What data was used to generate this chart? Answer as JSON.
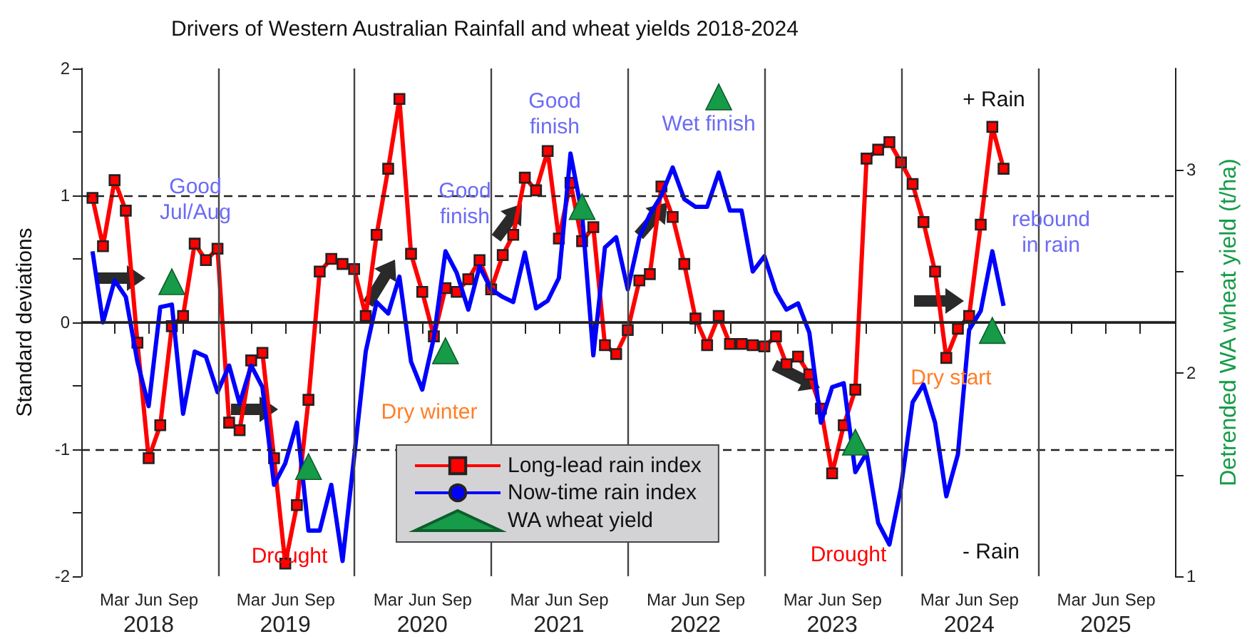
{
  "chart_data": {
    "type": "line",
    "title": "Drivers of Western Australian Rainfall and wheat yields 2018-2024",
    "ylabel": "Standard deviations",
    "y2label": "Detrended WA wheat yield (t/ha)",
    "x": [
      "2018-01-31",
      "2018-02-28",
      "2018-03-31",
      "2018-04-30",
      "2018-05-31",
      "2018-06-30",
      "2018-07-31",
      "2018-08-31",
      "2018-09-30",
      "2018-10-31",
      "2018-11-30",
      "2018-12-31",
      "2019-01-31",
      "2019-02-28",
      "2019-03-31",
      "2019-04-30",
      "2019-05-31",
      "2019-06-30",
      "2019-07-31",
      "2019-08-31",
      "2019-09-30",
      "2019-10-31",
      "2019-11-30",
      "2019-12-31",
      "2020-01-31",
      "2020-02-29",
      "2020-03-31",
      "2020-04-30",
      "2020-05-31",
      "2020-06-30",
      "2020-07-31",
      "2020-08-31",
      "2020-09-30",
      "2020-10-31",
      "2020-11-30",
      "2020-12-31",
      "2021-01-31",
      "2021-02-28",
      "2021-03-31",
      "2021-04-30",
      "2021-05-31",
      "2021-06-30",
      "2021-07-31",
      "2021-08-31",
      "2021-09-30",
      "2021-10-31",
      "2021-11-30",
      "2021-12-31",
      "2022-01-31",
      "2022-02-28",
      "2022-03-31",
      "2022-04-30",
      "2022-05-31",
      "2022-06-30",
      "2022-07-31",
      "2022-08-31",
      "2022-09-30",
      "2022-10-31",
      "2022-11-30",
      "2022-12-31",
      "2023-01-31",
      "2023-02-28",
      "2023-03-31",
      "2023-04-30",
      "2023-05-31",
      "2023-06-30",
      "2023-07-31",
      "2023-08-31",
      "2023-09-30",
      "2023-10-31",
      "2023-11-30",
      "2023-12-31",
      "2024-01-31",
      "2024-02-29",
      "2024-03-31",
      "2024-04-30",
      "2024-05-31",
      "2024-06-30",
      "2024-07-31",
      "2024-08-31",
      "2024-09-30"
    ],
    "series": [
      {
        "name": "Long-lead rain index",
        "color": "#ff0000",
        "marker": "square",
        "values": [
          0.98,
          0.6,
          1.12,
          0.88,
          -0.16,
          -1.07,
          -0.81,
          -0.03,
          0.05,
          0.62,
          0.49,
          0.58,
          -0.79,
          -0.85,
          -0.3,
          -0.24,
          -1.07,
          -1.9,
          -1.44,
          -0.61,
          0.4,
          0.5,
          0.46,
          0.42,
          0.05,
          0.69,
          1.21,
          1.76,
          0.54,
          0.24,
          -0.11,
          0.27,
          0.24,
          0.34,
          0.49,
          0.26,
          0.53,
          0.69,
          1.14,
          1.04,
          1.35,
          0.66,
          1.1,
          0.64,
          0.75,
          -0.18,
          -0.25,
          -0.06,
          0.33,
          0.38,
          1.07,
          0.83,
          0.46,
          0.03,
          -0.18,
          0.05,
          -0.17,
          -0.17,
          -0.18,
          -0.19,
          -0.11,
          -0.33,
          -0.27,
          -0.41,
          -0.68,
          -1.19,
          -0.81,
          -0.53,
          1.29,
          1.36,
          1.42,
          1.26,
          1.09,
          0.79,
          0.4,
          -0.28,
          -0.05,
          0.05,
          0.77,
          1.54,
          1.21
        ]
      },
      {
        "name": "Now-time rain index",
        "color": "#0000ff",
        "marker": "none",
        "values": [
          0.56,
          0.0,
          0.33,
          0.2,
          -0.31,
          -0.66,
          0.12,
          0.14,
          -0.72,
          -0.23,
          -0.27,
          -0.55,
          -0.34,
          -0.64,
          -0.34,
          -0.51,
          -1.28,
          -1.11,
          -0.79,
          -1.64,
          -1.64,
          -1.28,
          -1.88,
          -1.06,
          -0.23,
          0.16,
          0.07,
          0.36,
          -0.31,
          -0.53,
          -0.12,
          0.56,
          0.39,
          0.1,
          0.44,
          0.26,
          0.2,
          0.16,
          0.55,
          0.11,
          0.17,
          0.35,
          1.33,
          0.85,
          -0.26,
          0.59,
          0.67,
          0.26,
          0.67,
          0.85,
          1.0,
          1.22,
          0.97,
          0.91,
          0.91,
          1.18,
          0.88,
          0.88,
          0.4,
          0.52,
          0.24,
          0.1,
          0.15,
          -0.08,
          -0.79,
          -0.51,
          -0.48,
          -1.18,
          -1.03,
          -1.58,
          -1.75,
          -1.3,
          -0.63,
          -0.49,
          -0.79,
          -1.37,
          -1.04,
          -0.06,
          0.09,
          0.56,
          0.13
        ]
      },
      {
        "name": "WA wheat yield",
        "type": "scatter",
        "color": "#169b48",
        "marker": "triangle",
        "axis": "y2",
        "x": [
          "2018-08-31",
          "2019-08-31",
          "2020-08-31",
          "2021-08-31",
          "2022-08-31",
          "2023-08-31",
          "2024-08-31"
        ],
        "values": [
          2.45,
          1.54,
          2.11,
          2.82,
          3.36,
          1.66,
          2.21
        ]
      }
    ],
    "xlim": [
      "2018-01-01",
      "2026-01-01"
    ],
    "xticks": [
      {
        "value": "2018-01-01",
        "label": null
      },
      {
        "value": "2018-03-31",
        "label": "Mar"
      },
      {
        "value": "2018-06-30",
        "label": "Jun\n2018"
      },
      {
        "value": "2018-09-30",
        "label": "Sep"
      },
      {
        "value": "2019-01-01",
        "label": null
      },
      {
        "value": "2019-03-31",
        "label": "Mar"
      },
      {
        "value": "2019-06-30",
        "label": "Jun\n2019"
      },
      {
        "value": "2019-09-30",
        "label": "Sep"
      },
      {
        "value": "2020-01-01",
        "label": null
      },
      {
        "value": "2020-03-31",
        "label": "Mar"
      },
      {
        "value": "2020-06-30",
        "label": "Jun\n2020"
      },
      {
        "value": "2020-09-30",
        "label": "Sep"
      },
      {
        "value": "2021-01-01",
        "label": null
      },
      {
        "value": "2021-03-31",
        "label": "Mar"
      },
      {
        "value": "2021-06-30",
        "label": "Jun\n2021"
      },
      {
        "value": "2021-09-30",
        "label": "Sep"
      },
      {
        "value": "2022-01-01",
        "label": null
      },
      {
        "value": "2022-03-31",
        "label": "Mar"
      },
      {
        "value": "2022-06-30",
        "label": "Jun\n2022"
      },
      {
        "value": "2022-09-30",
        "label": "Sep"
      },
      {
        "value": "2023-01-01",
        "label": null
      },
      {
        "value": "2023-03-31",
        "label": "Mar"
      },
      {
        "value": "2023-06-30",
        "label": "Jun\n2023"
      },
      {
        "value": "2023-09-30",
        "label": "Sep"
      },
      {
        "value": "2024-01-01",
        "label": null
      },
      {
        "value": "2024-03-31",
        "label": "Mar"
      },
      {
        "value": "2024-06-30",
        "label": "Jun\n2024"
      },
      {
        "value": "2024-09-30",
        "label": "Sep"
      },
      {
        "value": "2025-01-01",
        "label": null
      },
      {
        "value": "2025-03-31",
        "label": "Mar"
      },
      {
        "value": "2025-06-30",
        "label": "Jun\n2025"
      },
      {
        "value": "2025-09-30",
        "label": "Sep"
      },
      {
        "value": "2026-01-01",
        "label": null
      }
    ],
    "ylim": [
      -2,
      2
    ],
    "yticks": [
      -2,
      {
        "value": -1.5,
        "label": null
      },
      -1,
      {
        "value": -0.5,
        "label": null
      },
      0,
      {
        "value": 0.5,
        "label": null
      },
      1,
      {
        "value": 1.5,
        "label": null
      },
      2
    ],
    "y2lim": [
      1,
      3.5
    ],
    "y2ticks": [
      1,
      {
        "value": 1.5,
        "label": null
      },
      2,
      {
        "value": 2.5,
        "label": null
      },
      3
    ],
    "ref_lines": [
      {
        "axis": "y",
        "value": 0,
        "color": "#222222",
        "line_style": "solid"
      },
      {
        "axis": "y",
        "value": 1,
        "color": "#222222",
        "line_style": "dashed"
      },
      {
        "axis": "y",
        "value": -1,
        "color": "#222222",
        "line_style": "dashed"
      },
      {
        "axis": "x",
        "value": "2019-01-01",
        "color": "#444444",
        "line_style": "solid"
      },
      {
        "axis": "x",
        "value": "2020-01-01",
        "color": "#444444",
        "line_style": "solid"
      },
      {
        "axis": "x",
        "value": "2021-01-01",
        "color": "#444444",
        "line_style": "solid"
      },
      {
        "axis": "x",
        "value": "2022-01-01",
        "color": "#444444",
        "line_style": "solid"
      },
      {
        "axis": "x",
        "value": "2023-01-01",
        "color": "#444444",
        "line_style": "solid"
      },
      {
        "axis": "x",
        "value": "2024-01-01",
        "color": "#444444",
        "line_style": "solid"
      },
      {
        "axis": "x",
        "value": "2025-01-01",
        "color": "#444444",
        "line_style": "solid"
      }
    ],
    "annotations": [
      "Good\nJul/Aug",
      "Drought",
      "Dry winter",
      "Good\nfinish",
      "Good\nfinish",
      "Wet finish",
      "Drought",
      "Dry start",
      "rebound\nin rain",
      "+ Rain",
      "- Rain"
    ],
    "legend": "bottom",
    "grid": false
  }
}
